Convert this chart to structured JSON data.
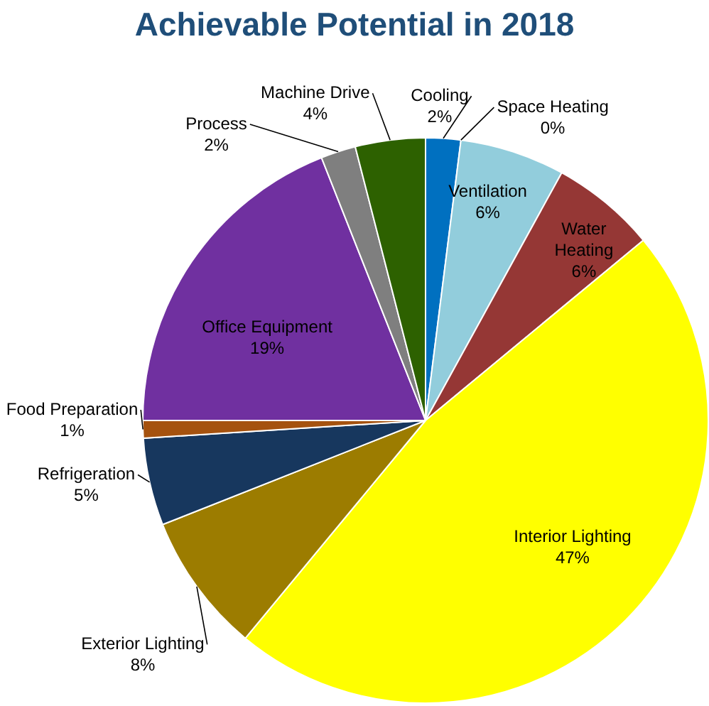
{
  "chart_data": {
    "type": "pie",
    "title": "Achievable Potential in 2018",
    "categories": [
      "Cooling",
      "Space Heating",
      "Ventilation",
      "Water\nHeating",
      "Interior Lighting",
      "Exterior Lighting",
      "Refrigeration",
      "Food Preparation",
      "Office Equipment",
      "Process",
      "Machine Drive"
    ],
    "values": [
      2,
      0,
      6,
      6,
      47,
      8,
      5,
      1,
      19,
      2,
      4
    ],
    "colors": [
      "#0070c0",
      "#e03030",
      "#92cddc",
      "#953735",
      "#ffff00",
      "#9c7c00",
      "#17375e",
      "#a5520f",
      "#7030a0",
      "#7f7f7f",
      "#2d6100"
    ],
    "value_labels": [
      "2%",
      "0%",
      "6%",
      "6%",
      "47%",
      "8%",
      "5%",
      "1%",
      "19%",
      "2%",
      "4%"
    ],
    "legend": false
  }
}
